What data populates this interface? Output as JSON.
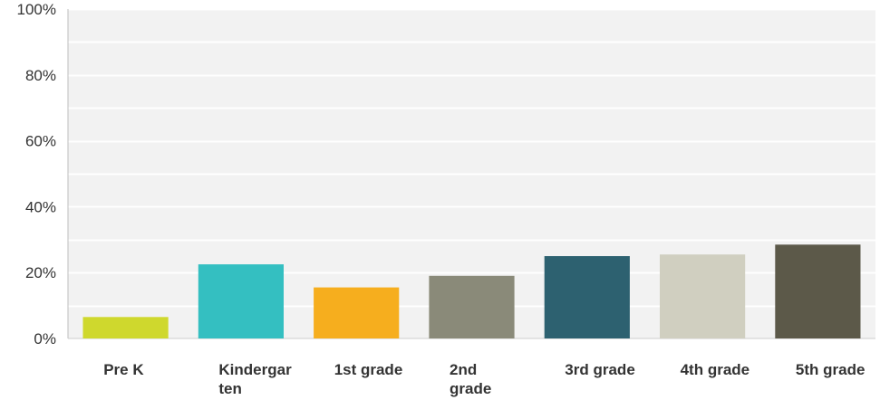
{
  "chart_data": {
    "type": "bar",
    "categories": [
      "Pre K",
      "Kindergarten",
      "1st grade",
      "2nd grade",
      "3rd grade",
      "4th grade",
      "5th grade"
    ],
    "category_label_lines": [
      [
        "Pre K"
      ],
      [
        "Kindergar",
        "ten"
      ],
      [
        "1st grade"
      ],
      [
        "2nd",
        "grade"
      ],
      [
        "3rd grade"
      ],
      [
        "4th grade"
      ],
      [
        "5th grade"
      ]
    ],
    "values": [
      6.5,
      22.5,
      15.5,
      19.0,
      25.0,
      25.5,
      28.5
    ],
    "colors": [
      "#cfd82d",
      "#34bfc1",
      "#f6ae1e",
      "#8a8a79",
      "#2d6170",
      "#d0cfc0",
      "#5c5949"
    ],
    "ylim": [
      0,
      100
    ],
    "yticks": [
      0,
      20,
      40,
      60,
      80,
      100
    ],
    "ytick_labels": [
      "0%",
      "20%",
      "40%",
      "60%",
      "80%",
      "100%"
    ],
    "gridlines": [
      10,
      20,
      30,
      40,
      50,
      60,
      70,
      80,
      90,
      100
    ],
    "grid": true,
    "plot_background": "#f2f2f2",
    "title": "",
    "xlabel": "",
    "ylabel": ""
  }
}
